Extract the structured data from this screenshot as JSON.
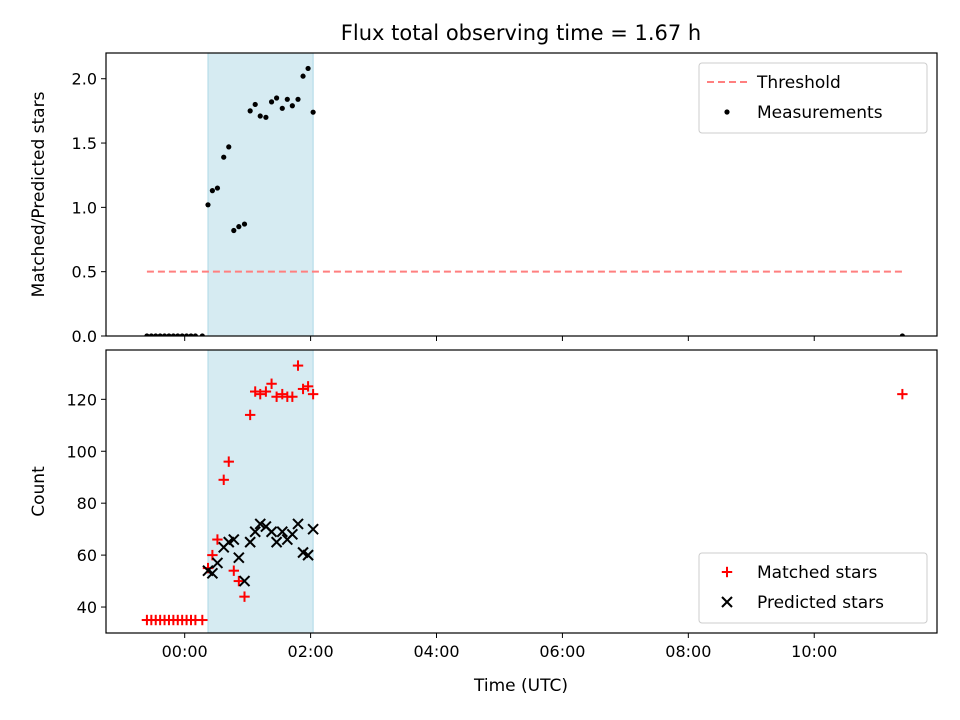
{
  "chart_data": {
    "title": "Flux total observing time = 1.67 h",
    "xlabel": "Time (UTC)",
    "x_unit": "hours",
    "xlim": [
      -1.25,
      11.95
    ],
    "x_ticks": [
      {
        "value": 0,
        "label": "00:00"
      },
      {
        "value": 2,
        "label": "02:00"
      },
      {
        "value": 4,
        "label": "04:00"
      },
      {
        "value": 6,
        "label": "06:00"
      },
      {
        "value": 8,
        "label": "08:00"
      },
      {
        "value": 10,
        "label": "10:00"
      }
    ],
    "observing_window": [
      0.37,
      2.04
    ],
    "window_color": "#add8e6",
    "panels": [
      {
        "type": "scatter",
        "ylabel": "Matched/Predicted stars",
        "ylim": [
          0.0,
          2.2
        ],
        "y_ticks": [
          "0.0",
          "0.5",
          "1.0",
          "1.5",
          "2.0"
        ],
        "legend": "top-right",
        "threshold": {
          "name": "Threshold",
          "y": 0.5,
          "x_range": [
            -0.6,
            11.4
          ],
          "color": "#ff7f7f",
          "style": "dashed"
        },
        "series": [
          {
            "name": "Measurements",
            "color": "#000000",
            "marker": "dot",
            "points": [
              [
                -0.6,
                0.0
              ],
              [
                -0.53,
                0.0
              ],
              [
                -0.46,
                0.0
              ],
              [
                -0.39,
                0.0
              ],
              [
                -0.32,
                0.0
              ],
              [
                -0.25,
                0.0
              ],
              [
                -0.18,
                0.0
              ],
              [
                -0.11,
                0.0
              ],
              [
                -0.04,
                0.0
              ],
              [
                0.03,
                0.0
              ],
              [
                0.1,
                0.0
              ],
              [
                0.17,
                0.0
              ],
              [
                0.28,
                0.0
              ],
              [
                0.37,
                1.02
              ],
              [
                0.44,
                1.13
              ],
              [
                0.52,
                1.15
              ],
              [
                0.62,
                1.39
              ],
              [
                0.7,
                1.47
              ],
              [
                0.78,
                0.82
              ],
              [
                0.86,
                0.85
              ],
              [
                0.95,
                0.87
              ],
              [
                1.04,
                1.75
              ],
              [
                1.12,
                1.8
              ],
              [
                1.2,
                1.71
              ],
              [
                1.29,
                1.7
              ],
              [
                1.38,
                1.82
              ],
              [
                1.46,
                1.85
              ],
              [
                1.55,
                1.77
              ],
              [
                1.63,
                1.84
              ],
              [
                1.71,
                1.79
              ],
              [
                1.8,
                1.84
              ],
              [
                1.88,
                2.02
              ],
              [
                1.96,
                2.08
              ],
              [
                2.04,
                1.74
              ],
              [
                11.4,
                0.0
              ]
            ]
          }
        ]
      },
      {
        "type": "scatter",
        "ylabel": "Count",
        "ylim": [
          30,
          139
        ],
        "y_ticks": [
          "40",
          "60",
          "80",
          "100",
          "120"
        ],
        "legend": "bottom-right",
        "series": [
          {
            "name": "Matched stars",
            "color": "#ff0000",
            "marker": "plus",
            "points": [
              [
                -0.6,
                35
              ],
              [
                -0.53,
                35
              ],
              [
                -0.46,
                35
              ],
              [
                -0.39,
                35
              ],
              [
                -0.32,
                35
              ],
              [
                -0.25,
                35
              ],
              [
                -0.18,
                35
              ],
              [
                -0.11,
                35
              ],
              [
                -0.04,
                35
              ],
              [
                0.03,
                35
              ],
              [
                0.1,
                35
              ],
              [
                0.17,
                35
              ],
              [
                0.28,
                35
              ],
              [
                0.37,
                55
              ],
              [
                0.44,
                60
              ],
              [
                0.52,
                66
              ],
              [
                0.62,
                89
              ],
              [
                0.7,
                96
              ],
              [
                0.78,
                54
              ],
              [
                0.86,
                50
              ],
              [
                0.95,
                44
              ],
              [
                1.04,
                114
              ],
              [
                1.12,
                123
              ],
              [
                1.2,
                122
              ],
              [
                1.29,
                123
              ],
              [
                1.38,
                126
              ],
              [
                1.46,
                121
              ],
              [
                1.55,
                122
              ],
              [
                1.63,
                121
              ],
              [
                1.71,
                121
              ],
              [
                1.8,
                133
              ],
              [
                1.88,
                124
              ],
              [
                1.96,
                125
              ],
              [
                2.04,
                122
              ],
              [
                11.4,
                122
              ]
            ]
          },
          {
            "name": "Predicted stars",
            "color": "#000000",
            "marker": "x",
            "points": [
              [
                0.37,
                54
              ],
              [
                0.44,
                53
              ],
              [
                0.52,
                57
              ],
              [
                0.62,
                63
              ],
              [
                0.7,
                65
              ],
              [
                0.78,
                66
              ],
              [
                0.86,
                59
              ],
              [
                0.95,
                50
              ],
              [
                1.04,
                65
              ],
              [
                1.12,
                69
              ],
              [
                1.2,
                72
              ],
              [
                1.29,
                71
              ],
              [
                1.38,
                69
              ],
              [
                1.46,
                65
              ],
              [
                1.55,
                69
              ],
              [
                1.63,
                66
              ],
              [
                1.71,
                68
              ],
              [
                1.8,
                72
              ],
              [
                1.88,
                61
              ],
              [
                1.96,
                60
              ],
              [
                2.04,
                70
              ]
            ]
          }
        ]
      }
    ]
  }
}
